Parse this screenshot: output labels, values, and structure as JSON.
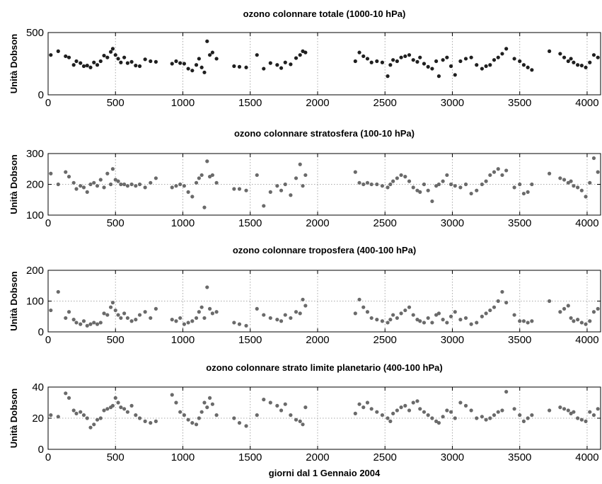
{
  "chart_data": [
    {
      "type": "scatter",
      "title": "ozono colonnare totale (1000-10 hPa)",
      "ylabel": "Unità Dobson",
      "xlabel": "",
      "xlim": [
        0,
        4100
      ],
      "ylim": [
        0,
        500
      ],
      "xticks": [
        "0",
        "500",
        "1000",
        "1500",
        "2000",
        "2500",
        "3000",
        "3500",
        "4000"
      ],
      "yticks": [
        "0",
        "500"
      ],
      "grid": true,
      "marker_color": "#1f1f1f",
      "series": [
        {
          "x": [
            20,
            75,
            130,
            155,
            190,
            210,
            240,
            265,
            290,
            315,
            340,
            365,
            390,
            415,
            440,
            465,
            480,
            500,
            520,
            540,
            565,
            590,
            620,
            650,
            680,
            720,
            760,
            800,
            920,
            950,
            980,
            1010,
            1040,
            1070,
            1100,
            1120,
            1140,
            1160,
            1180,
            1200,
            1220,
            1250,
            1380,
            1420,
            1470,
            1550,
            1600,
            1650,
            1700,
            1730,
            1760,
            1800,
            1840,
            1870,
            1890,
            1910,
            2280,
            2310,
            2340,
            2370,
            2400,
            2440,
            2480,
            2520,
            2540,
            2560,
            2590,
            2620,
            2650,
            2680,
            2710,
            2740,
            2760,
            2790,
            2820,
            2850,
            2880,
            2900,
            2930,
            2960,
            2990,
            3020,
            3060,
            3100,
            3140,
            3180,
            3220,
            3250,
            3280,
            3310,
            3340,
            3370,
            3400,
            3460,
            3500,
            3530,
            3560,
            3590,
            3720,
            3800,
            3830,
            3860,
            3880,
            3900,
            3930,
            3960,
            3990,
            4020,
            4050,
            4080
          ],
          "y": [
            320,
            350,
            310,
            300,
            240,
            270,
            255,
            230,
            235,
            220,
            260,
            240,
            270,
            315,
            300,
            345,
            370,
            320,
            290,
            260,
            300,
            255,
            265,
            235,
            230,
            285,
            270,
            265,
            250,
            270,
            255,
            250,
            210,
            195,
            240,
            290,
            220,
            180,
            430,
            320,
            340,
            290,
            230,
            225,
            220,
            320,
            210,
            255,
            240,
            215,
            260,
            245,
            295,
            320,
            350,
            340,
            270,
            340,
            310,
            290,
            260,
            270,
            260,
            150,
            240,
            280,
            270,
            300,
            310,
            320,
            280,
            265,
            300,
            250,
            225,
            210,
            270,
            150,
            280,
            300,
            230,
            160,
            270,
            290,
            300,
            240,
            210,
            230,
            240,
            280,
            300,
            330,
            370,
            290,
            270,
            240,
            220,
            200,
            350,
            330,
            300,
            270,
            290,
            260,
            240,
            235,
            220,
            260,
            320,
            300
          ]
        }
      ]
    },
    {
      "type": "scatter",
      "title": "ozono colonnare stratosfera (100-10 hPa)",
      "ylabel": "Unità Dobson",
      "xlabel": "",
      "xlim": [
        0,
        4100
      ],
      "ylim": [
        100,
        300
      ],
      "xticks": [
        "0",
        "500",
        "1000",
        "1500",
        "2000",
        "2500",
        "3000",
        "3500",
        "4000"
      ],
      "yticks": [
        "100",
        "200",
        "300"
      ],
      "grid": true,
      "marker_color": "#6a6a6a",
      "series": [
        {
          "x": [
            20,
            75,
            130,
            155,
            190,
            210,
            240,
            265,
            290,
            315,
            340,
            365,
            390,
            415,
            440,
            465,
            480,
            500,
            520,
            540,
            565,
            590,
            620,
            650,
            680,
            720,
            760,
            800,
            920,
            950,
            980,
            1010,
            1040,
            1070,
            1100,
            1120,
            1140,
            1160,
            1180,
            1200,
            1220,
            1250,
            1380,
            1420,
            1470,
            1550,
            1600,
            1650,
            1700,
            1730,
            1760,
            1800,
            1840,
            1870,
            1890,
            1910,
            2280,
            2310,
            2340,
            2370,
            2400,
            2440,
            2480,
            2520,
            2540,
            2560,
            2590,
            2620,
            2650,
            2680,
            2710,
            2740,
            2760,
            2790,
            2820,
            2850,
            2880,
            2900,
            2930,
            2960,
            2990,
            3020,
            3060,
            3100,
            3140,
            3180,
            3220,
            3250,
            3280,
            3310,
            3340,
            3370,
            3400,
            3460,
            3500,
            3530,
            3560,
            3590,
            3720,
            3800,
            3830,
            3860,
            3880,
            3900,
            3930,
            3960,
            3990,
            4020,
            4050,
            4080
          ],
          "y": [
            235,
            200,
            240,
            225,
            205,
            185,
            195,
            190,
            175,
            200,
            205,
            195,
            215,
            190,
            235,
            200,
            250,
            215,
            210,
            200,
            200,
            195,
            200,
            195,
            200,
            190,
            205,
            220,
            190,
            195,
            200,
            195,
            175,
            160,
            205,
            220,
            230,
            125,
            275,
            225,
            230,
            205,
            185,
            185,
            180,
            230,
            130,
            175,
            195,
            180,
            200,
            165,
            220,
            265,
            195,
            230,
            240,
            205,
            200,
            205,
            200,
            200,
            195,
            190,
            200,
            210,
            220,
            230,
            225,
            210,
            190,
            180,
            175,
            200,
            180,
            145,
            195,
            200,
            210,
            230,
            200,
            195,
            190,
            200,
            170,
            180,
            200,
            210,
            230,
            240,
            250,
            230,
            245,
            190,
            200,
            170,
            175,
            200,
            235,
            220,
            215,
            205,
            210,
            195,
            190,
            180,
            160,
            205,
            285,
            240
          ]
        }
      ]
    },
    {
      "type": "scatter",
      "title": "ozono colonnare troposfera (400-100 hPa)",
      "ylabel": "Unità Dobson",
      "xlabel": "",
      "xlim": [
        0,
        4100
      ],
      "ylim": [
        0,
        200
      ],
      "xticks": [
        "0",
        "500",
        "1000",
        "1500",
        "2000",
        "2500",
        "3000",
        "3500",
        "4000"
      ],
      "yticks": [
        "0",
        "100",
        "200"
      ],
      "grid": true,
      "marker_color": "#6a6a6a",
      "series": [
        {
          "x": [
            20,
            75,
            130,
            155,
            190,
            210,
            240,
            265,
            290,
            315,
            340,
            365,
            390,
            415,
            440,
            465,
            480,
            500,
            520,
            540,
            565,
            590,
            620,
            650,
            680,
            720,
            760,
            800,
            920,
            950,
            980,
            1010,
            1040,
            1070,
            1100,
            1120,
            1140,
            1160,
            1180,
            1200,
            1220,
            1250,
            1380,
            1420,
            1470,
            1550,
            1600,
            1650,
            1700,
            1730,
            1760,
            1800,
            1840,
            1870,
            1890,
            1910,
            2280,
            2310,
            2340,
            2370,
            2400,
            2440,
            2480,
            2520,
            2540,
            2560,
            2590,
            2620,
            2650,
            2680,
            2710,
            2740,
            2760,
            2790,
            2820,
            2850,
            2880,
            2900,
            2930,
            2960,
            2990,
            3020,
            3060,
            3100,
            3140,
            3180,
            3220,
            3250,
            3280,
            3310,
            3340,
            3370,
            3400,
            3460,
            3500,
            3530,
            3560,
            3590,
            3720,
            3800,
            3830,
            3860,
            3880,
            3900,
            3930,
            3960,
            3990,
            4020,
            4050,
            4080
          ],
          "y": [
            70,
            130,
            45,
            65,
            40,
            30,
            25,
            35,
            20,
            25,
            30,
            25,
            30,
            60,
            55,
            80,
            95,
            70,
            55,
            45,
            60,
            45,
            35,
            40,
            55,
            65,
            45,
            75,
            40,
            35,
            45,
            25,
            30,
            35,
            45,
            65,
            80,
            45,
            145,
            75,
            60,
            65,
            30,
            25,
            20,
            75,
            55,
            45,
            40,
            35,
            55,
            45,
            65,
            60,
            105,
            85,
            60,
            105,
            80,
            65,
            45,
            40,
            35,
            30,
            40,
            55,
            45,
            60,
            70,
            80,
            55,
            40,
            35,
            30,
            45,
            30,
            55,
            60,
            40,
            30,
            50,
            65,
            40,
            45,
            25,
            30,
            50,
            60,
            70,
            80,
            100,
            130,
            95,
            55,
            35,
            35,
            30,
            35,
            100,
            65,
            75,
            85,
            45,
            35,
            40,
            30,
            25,
            35,
            65,
            75
          ]
        }
      ]
    },
    {
      "type": "scatter",
      "title": "ozono colonnare strato limite planetario (400-100 hPa)",
      "ylabel": "Unità Dobson",
      "xlabel": "giorni dal 1 Gennaio 2004",
      "xlim": [
        0,
        4100
      ],
      "ylim": [
        0,
        40
      ],
      "xticks": [
        "0",
        "500",
        "1000",
        "1500",
        "2000",
        "2500",
        "3000",
        "3500",
        "4000"
      ],
      "yticks": [
        "0",
        "20",
        "40"
      ],
      "grid": true,
      "marker_color": "#6a6a6a",
      "series": [
        {
          "x": [
            20,
            75,
            130,
            155,
            190,
            210,
            240,
            265,
            290,
            315,
            340,
            365,
            390,
            415,
            440,
            465,
            480,
            500,
            520,
            540,
            565,
            590,
            620,
            650,
            680,
            720,
            760,
            800,
            920,
            950,
            980,
            1010,
            1040,
            1070,
            1100,
            1120,
            1140,
            1160,
            1180,
            1200,
            1220,
            1250,
            1380,
            1420,
            1470,
            1550,
            1600,
            1650,
            1700,
            1730,
            1760,
            1800,
            1840,
            1870,
            1890,
            1910,
            2280,
            2310,
            2340,
            2370,
            2400,
            2440,
            2480,
            2520,
            2540,
            2560,
            2590,
            2620,
            2650,
            2680,
            2710,
            2740,
            2760,
            2790,
            2820,
            2850,
            2880,
            2900,
            2930,
            2960,
            2990,
            3020,
            3060,
            3100,
            3140,
            3180,
            3220,
            3250,
            3280,
            3310,
            3340,
            3370,
            3400,
            3460,
            3500,
            3530,
            3560,
            3590,
            3720,
            3800,
            3830,
            3860,
            3880,
            3900,
            3930,
            3960,
            3990,
            4020,
            4050,
            4080
          ],
          "y": [
            22,
            21,
            36,
            33,
            25,
            23,
            24,
            22,
            20,
            14,
            16,
            19,
            20,
            25,
            26,
            27,
            28,
            33,
            30,
            27,
            26,
            24,
            28,
            22,
            20,
            18,
            17,
            18,
            35,
            30,
            24,
            22,
            19,
            17,
            16,
            20,
            24,
            30,
            27,
            33,
            29,
            22,
            20,
            17,
            15,
            22,
            32,
            30,
            28,
            25,
            29,
            22,
            19,
            18,
            16,
            27,
            23,
            29,
            27,
            30,
            26,
            24,
            22,
            20,
            18,
            23,
            25,
            27,
            28,
            25,
            30,
            31,
            26,
            24,
            22,
            20,
            18,
            17,
            21,
            25,
            24,
            20,
            30,
            28,
            25,
            20,
            21,
            19,
            20,
            22,
            24,
            25,
            37,
            26,
            22,
            18,
            20,
            22,
            25,
            27,
            26,
            25,
            23,
            24,
            20,
            19,
            18,
            24,
            22,
            26
          ]
        }
      ]
    }
  ]
}
